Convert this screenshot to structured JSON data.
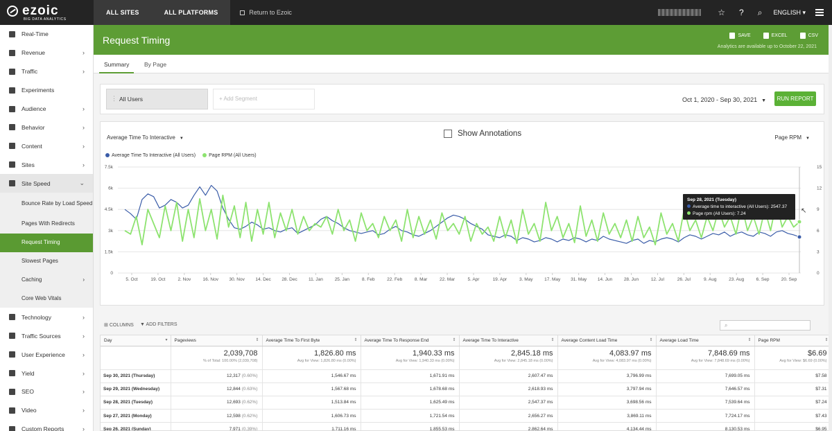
{
  "brand": {
    "name": "ezoic",
    "tagline": "BIG DATA ANALYTICS"
  },
  "topnav": {
    "all_sites": "ALL SITES",
    "all_platforms": "ALL PLATFORMS",
    "return": "Return to Ezoic",
    "language": "ENGLISH"
  },
  "sidebar": {
    "items": [
      {
        "label": "Real-Time",
        "icon": "flag-icon",
        "chevron": false
      },
      {
        "label": "Revenue",
        "icon": "money-icon",
        "chevron": true
      },
      {
        "label": "Traffic",
        "icon": "traffic-light-icon",
        "chevron": true
      },
      {
        "label": "Experiments",
        "icon": "flask-icon",
        "chevron": false
      },
      {
        "label": "Audience",
        "icon": "users-icon",
        "chevron": true
      },
      {
        "label": "Behavior",
        "icon": "area-chart-icon",
        "chevron": true
      },
      {
        "label": "Content",
        "icon": "content-icon",
        "chevron": true
      },
      {
        "label": "Sites",
        "icon": "globe-icon",
        "chevron": true
      },
      {
        "label": "Site Speed",
        "icon": "speedometer-icon",
        "chevron": true
      }
    ],
    "subitems": [
      {
        "label": "Bounce Rate by Load Speed"
      },
      {
        "label": "Pages With Redirects"
      },
      {
        "label": "Request Timing"
      },
      {
        "label": "Slowest Pages"
      },
      {
        "label": "Caching"
      },
      {
        "label": "Core Web Vitals"
      }
    ],
    "items2": [
      {
        "label": "Technology",
        "icon": "chip-icon"
      },
      {
        "label": "Traffic Sources",
        "icon": "sitemap-icon"
      },
      {
        "label": "User Experience",
        "icon": "smile-icon"
      },
      {
        "label": "Yield",
        "icon": "line-chart-icon"
      },
      {
        "label": "SEO",
        "icon": "globe-icon"
      },
      {
        "label": "Video",
        "icon": "video-icon"
      },
      {
        "label": "Custom Reports",
        "icon": "gear-icon"
      }
    ]
  },
  "header": {
    "title": "Request Timing",
    "save": "SAVE",
    "excel": "EXCEL",
    "csv": "CSV",
    "availability": "Analytics are available up to October 22, 2021"
  },
  "tabs": {
    "summary": "Summary",
    "by_page": "By Page"
  },
  "segment": {
    "current": "All Users",
    "add_placeholder": "+ Add Segment",
    "date_range": "Oct 1, 2020 - Sep 30, 2021",
    "run": "RUN REPORT"
  },
  "chart_controls": {
    "metric": "Average Time To Interactive",
    "annotations": "Show Annotations",
    "secondary_metric": "Page RPM"
  },
  "tooltip": {
    "title": "Sep 28, 2021 (Tuesday)",
    "line1": "Average time to interactive (All Users): 2547.37",
    "line2": "Page rpm (All Users): 7.24"
  },
  "colors": {
    "accent": "#5d9d35",
    "series_blue": "#3a5ca8",
    "series_green": "#8de36f"
  },
  "chart_data": {
    "type": "line",
    "series": [
      {
        "name": "Average Time To Interactive (All Users)",
        "axis": "left",
        "color": "#3a5ca8",
        "values": [
          4500,
          4200,
          3800,
          5200,
          5600,
          5400,
          4600,
          4800,
          5200,
          5000,
          4600,
          4800,
          5500,
          6100,
          5500,
          6200,
          5800,
          4600,
          3800,
          3200,
          3100,
          3300,
          3600,
          3400,
          3100,
          3200,
          3000,
          2900,
          3100,
          3200,
          2800,
          3000,
          3200,
          3400,
          3800,
          4000,
          3700,
          3500,
          3200,
          3000,
          2900,
          2800,
          2900,
          3000,
          2700,
          2800,
          3100,
          3300,
          3000,
          2900,
          2700,
          2600,
          2800,
          3000,
          3300,
          3600,
          3900,
          4100,
          4000,
          3800,
          3500,
          3300,
          3100,
          2700,
          2600,
          2500,
          2700,
          2600,
          2300,
          2500,
          2400,
          2200,
          2300,
          2500,
          2400,
          2200,
          2400,
          2300,
          2500,
          2400,
          2200,
          2400,
          2300,
          2600,
          2400,
          2300,
          2200,
          2100,
          2300,
          2400,
          2100,
          2300,
          2200,
          2400,
          2500,
          2400,
          2200,
          2500,
          2700,
          2600,
          2400,
          2600,
          2800,
          2700,
          2900,
          2600,
          2800,
          2900,
          2700,
          2600,
          2900,
          2800,
          2600,
          2900,
          3000,
          2800,
          2700,
          2547
        ]
      },
      {
        "name": "Page RPM (All Users)",
        "axis": "right",
        "color": "#8de36f",
        "values": [
          6,
          5.5,
          8,
          4,
          9,
          7,
          5,
          9.5,
          6,
          10,
          4.5,
          9,
          5,
          10.5,
          6,
          9,
          4.8,
          11,
          6.5,
          9.5,
          5,
          10,
          4.5,
          9,
          5.5,
          10,
          5,
          8.5,
          6,
          9,
          5.5,
          8,
          6,
          7,
          6.5,
          8,
          5.5,
          9,
          6,
          7.5,
          4.5,
          8.5,
          6,
          7,
          5,
          8,
          6,
          7.5,
          4.5,
          9,
          5,
          8,
          5.5,
          7.5,
          4.8,
          8.5,
          6,
          7,
          5.5,
          8,
          4.5,
          7,
          5.5,
          6.5,
          4.5,
          8,
          5,
          7.5,
          4.2,
          9,
          5.5,
          7,
          4.5,
          10,
          6,
          8,
          5,
          7,
          4.3,
          9.5,
          5.2,
          7.5,
          4.5,
          8.5,
          5.5,
          7,
          5,
          7.5,
          4.5,
          8,
          5,
          6.5,
          4,
          8.5,
          5.5,
          7,
          4.5,
          9,
          6,
          7.5,
          5,
          8,
          6,
          9,
          6.5,
          8,
          5.5,
          9.5,
          6,
          8,
          5.5,
          9,
          6,
          10,
          6.5,
          8,
          6.5,
          7.24
        ]
      }
    ],
    "x_ticks": [
      "5. Oct",
      "19. Oct",
      "2. Nov",
      "16. Nov",
      "30. Nov",
      "14. Dec",
      "28. Dec",
      "11. Jan",
      "25. Jan",
      "8. Feb",
      "22. Feb",
      "8. Mar",
      "22. Mar",
      "5. Apr",
      "19. Apr",
      "3. May",
      "17. May",
      "31. May",
      "14. Jun",
      "28. Jun",
      "12. Jul",
      "26. Jul",
      "9. Aug",
      "23. Aug",
      "6. Sep",
      "20. Sep"
    ],
    "y_left_ticks": [
      "0",
      "1.5k",
      "3k",
      "4.5k",
      "6k",
      "7.5k"
    ],
    "y_right_ticks": [
      "0",
      "3",
      "6",
      "9",
      "12",
      "15"
    ],
    "y_left_range": [
      0,
      7500
    ],
    "y_right_range": [
      0,
      15
    ],
    "grid": true,
    "legend": "top-left"
  },
  "table": {
    "toolbar": {
      "columns": "COLUMNS",
      "filters": "ADD FILTERS"
    },
    "headers": [
      "Day",
      "Pageviews",
      "Average Time To First Byte",
      "Average Time To Response End",
      "Average Time To Interactive",
      "Average Content Load Time",
      "Average Load Time",
      "Page RPM"
    ],
    "totals": {
      "pageviews": "2,039,708",
      "pageviews_sub": "% of Total: 100.00% (2,039,708)",
      "ttfb": "1,826.80 ms",
      "ttfb_sub": "Avg for View: 1,826.80 ms (0.00%)",
      "tre": "1,940.33 ms",
      "tre_sub": "Avg for View: 1,940.33 ms (0.00%)",
      "tti": "2,845.18 ms",
      "tti_sub": "Avg for View: 2,845.18 ms (0.00%)",
      "clt": "4,083.97 ms",
      "clt_sub": "Avg for View: 4,083.97 ms (0.00%)",
      "lt": "7,848.69 ms",
      "lt_sub": "Avg for View: 7,848.69 ms (0.00%)",
      "rpm": "$6.69",
      "rpm_sub": "Avg for View: $6.69 (0.00%)"
    },
    "rows": [
      {
        "day": "Sep 30, 2021 (Thursday)",
        "pv": "12,317",
        "pct": "(0.60%)",
        "ttfb": "1,546.67 ms",
        "tre": "1,671.91 ms",
        "tti": "2,607.47 ms",
        "clt": "3,796.99 ms",
        "lt": "7,699.05 ms",
        "rpm": "$7.58"
      },
      {
        "day": "Sep 29, 2021 (Wednesday)",
        "pv": "12,844",
        "pct": "(0.63%)",
        "ttfb": "1,567.68 ms",
        "tre": "1,678.68 ms",
        "tti": "2,618.93 ms",
        "clt": "3,797.94 ms",
        "lt": "7,646.57 ms",
        "rpm": "$7.31"
      },
      {
        "day": "Sep 28, 2021 (Tuesday)",
        "pv": "12,693",
        "pct": "(0.62%)",
        "ttfb": "1,513.84 ms",
        "tre": "1,625.49 ms",
        "tti": "2,547.37 ms",
        "clt": "3,698.56 ms",
        "lt": "7,539.64 ms",
        "rpm": "$7.24"
      },
      {
        "day": "Sep 27, 2021 (Monday)",
        "pv": "12,598",
        "pct": "(0.62%)",
        "ttfb": "1,606.73 ms",
        "tre": "1,721.54 ms",
        "tti": "2,656.27 ms",
        "clt": "3,869.11 ms",
        "lt": "7,724.17 ms",
        "rpm": "$7.43"
      },
      {
        "day": "Sep 26, 2021 (Sunday)",
        "pv": "7,971",
        "pct": "(0.39%)",
        "ttfb": "1,711.16 ms",
        "tre": "1,855.53 ms",
        "tti": "2,862.64 ms",
        "clt": "4,134.44 ms",
        "lt": "8,130.53 ms",
        "rpm": "$6.95"
      }
    ]
  }
}
